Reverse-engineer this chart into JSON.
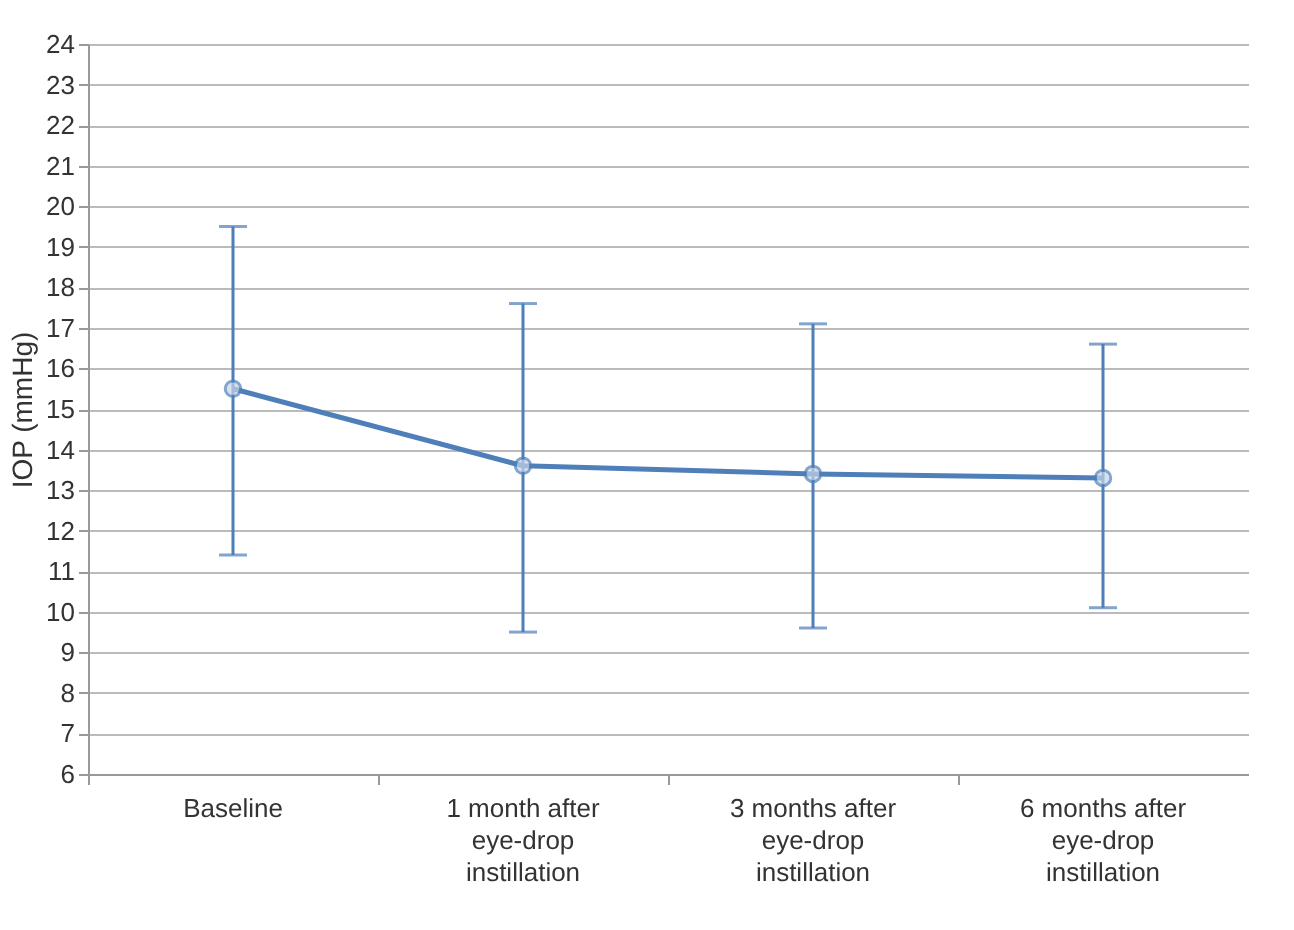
{
  "chart_data": {
    "type": "line",
    "ylabel": "IOP (mmHg)",
    "categories": [
      "Baseline",
      "1 month after\neye-drop\ninstillation",
      "3 months after\neye-drop\ninstillation",
      "6 months after\neye-drop\ninstillation"
    ],
    "values": [
      15.5,
      13.6,
      13.4,
      13.3
    ],
    "errors": [
      [
        11.4,
        19.5
      ],
      [
        9.5,
        17.6
      ],
      [
        9.6,
        17.1
      ],
      [
        10.1,
        16.6
      ]
    ],
    "color": "#4f7fb8",
    "marker": "circle",
    "line_style": "solid",
    "ylim": [
      6,
      24
    ],
    "yticks": [
      6,
      7,
      8,
      9,
      10,
      11,
      12,
      13,
      14,
      15,
      16,
      17,
      18,
      19,
      20,
      21,
      22,
      23,
      24
    ],
    "grid": "y"
  }
}
